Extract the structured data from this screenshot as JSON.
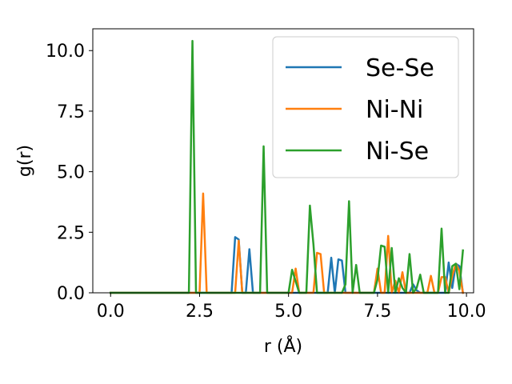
{
  "chart_data": {
    "type": "line",
    "xlabel": "r (Å)",
    "ylabel": "g(r)",
    "xlim": [
      -0.5,
      10.2
    ],
    "ylim": [
      0,
      10.9
    ],
    "xticks": [
      0,
      2.5,
      5,
      7.5,
      10
    ],
    "xtick_labels": [
      "0.0",
      "2.5",
      "5.0",
      "7.5",
      "10.0"
    ],
    "yticks": [
      0,
      2.5,
      5,
      7.5,
      10
    ],
    "ytick_labels": [
      "0.0",
      "2.5",
      "5.0",
      "7.5",
      "10.0"
    ],
    "grid": false,
    "legend_position": "top-right",
    "series": [
      {
        "name": "Se-Se",
        "color": "#1f77b4",
        "x": [
          0,
          3.4,
          3.5,
          3.6,
          3.7,
          3.8,
          3.9,
          4.0,
          5.0,
          6.1,
          6.2,
          6.3,
          6.4,
          6.5,
          6.6,
          6.7,
          8.4,
          8.5,
          8.6,
          8.7,
          9.4,
          9.5,
          9.6,
          9.7,
          9.8,
          9.9
        ],
        "y": [
          0,
          0,
          2.3,
          2.2,
          0,
          0,
          1.8,
          0,
          0,
          0,
          1.45,
          0,
          1.38,
          1.33,
          0,
          0,
          0,
          0.35,
          0.1,
          0,
          0,
          1.25,
          0.2,
          1.2,
          1.1,
          0
        ]
      },
      {
        "name": "Ni-Ni",
        "color": "#ff7f0e",
        "x": [
          0,
          2.5,
          2.6,
          2.7,
          3.5,
          3.6,
          3.7,
          5.1,
          5.2,
          5.3,
          5.7,
          5.8,
          5.9,
          6.0,
          7.4,
          7.5,
          7.6,
          7.7,
          7.8,
          7.9,
          8.0,
          8.1,
          8.2,
          8.3,
          8.9,
          9.0,
          9.1,
          9.2,
          9.3,
          9.4,
          9.5,
          9.6,
          9.7,
          9.8,
          9.9
        ],
        "y": [
          0,
          0,
          4.1,
          0,
          0,
          2.15,
          0,
          0,
          1.0,
          0,
          0,
          1.65,
          1.6,
          0,
          0,
          1.0,
          0,
          0,
          2.35,
          0,
          0.5,
          0,
          0.85,
          0,
          0,
          0.7,
          0,
          0,
          0.65,
          0.65,
          0,
          0.7,
          1.2,
          0.9,
          0
        ]
      },
      {
        "name": "Ni-Se",
        "color": "#2ca02c",
        "x": [
          0,
          2.2,
          2.3,
          2.4,
          4.2,
          4.3,
          4.4,
          5.0,
          5.1,
          5.3,
          5.5,
          5.6,
          5.7,
          5.8,
          6.5,
          6.6,
          6.7,
          6.8,
          6.9,
          7.0,
          7.4,
          7.5,
          7.6,
          7.7,
          7.8,
          7.9,
          8.0,
          8.1,
          8.2,
          8.3,
          8.4,
          8.5,
          8.6,
          8.7,
          8.8,
          9.2,
          9.3,
          9.4,
          9.5,
          9.6,
          9.7,
          9.8,
          9.9
        ],
        "y": [
          0,
          0,
          10.4,
          0,
          0,
          6.05,
          0,
          0,
          0.95,
          0,
          0,
          3.6,
          2.0,
          0,
          0,
          0.35,
          3.78,
          0,
          1.15,
          0,
          0,
          0.55,
          1.95,
          1.9,
          0,
          1.85,
          0,
          0.6,
          0.2,
          0,
          1.6,
          0,
          0.2,
          0.75,
          0,
          0,
          2.65,
          0,
          0,
          1.1,
          1.2,
          0.15,
          1.75
        ]
      }
    ]
  }
}
